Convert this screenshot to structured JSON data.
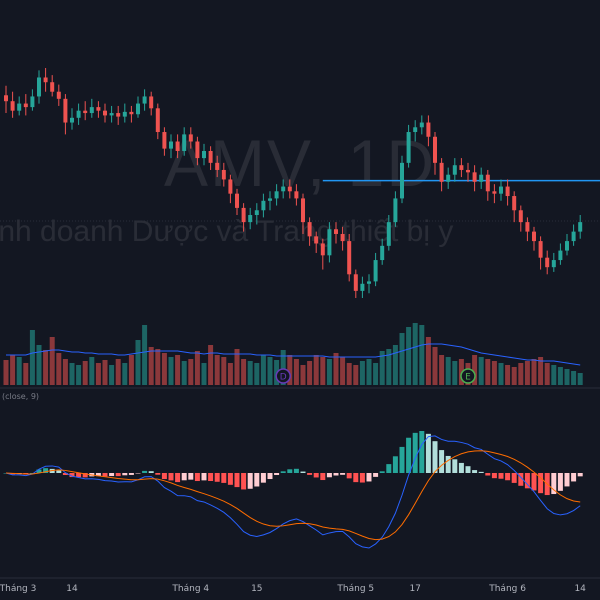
{
  "watermark": {
    "title": "AMV, 1D",
    "subtitle": "t kinh doanh Dược và Trang thiết bị y"
  },
  "macd_label": "(close, 9)",
  "colors": {
    "background": "#131722",
    "up": "#26a69a",
    "down": "#ef5350",
    "macd_hist_up_strong": "#26a69a",
    "macd_hist_up_weak": "#b2dfdb",
    "macd_hist_down_strong": "#ff5252",
    "macd_hist_down_weak": "#ffcdd2",
    "macd_line": "#2962ff",
    "signal_line": "#ff6d00",
    "volume_ma": "#2962ff",
    "horizontal_line": "#2196f3"
  },
  "events": [
    {
      "label": "D",
      "color": "#673ab7",
      "index": 42
    },
    {
      "label": "E",
      "color": "#4caf50",
      "index": 70
    }
  ],
  "chart_data": {
    "type": "candlestick",
    "x_ticks": [
      {
        "label": "Tháng 3",
        "index": 0
      },
      {
        "label": "14",
        "index": 10
      },
      {
        "label": "Tháng 4",
        "index": 28
      },
      {
        "label": "15",
        "index": 38
      },
      {
        "label": "Tháng 5",
        "index": 53
      },
      {
        "label": "17",
        "index": 62
      },
      {
        "label": "Tháng 6",
        "index": 76
      },
      {
        "label": "14",
        "index": 87
      }
    ],
    "horizontal_level": 6.15,
    "candles": [
      [
        6.87,
        6.82,
        6.95,
        6.72
      ],
      [
        6.82,
        6.74,
        6.9,
        6.68
      ],
      [
        6.74,
        6.8,
        6.86,
        6.7
      ],
      [
        6.8,
        6.77,
        6.88,
        6.7
      ],
      [
        6.77,
        6.86,
        6.92,
        6.74
      ],
      [
        6.86,
        7.02,
        7.08,
        6.8
      ],
      [
        7.02,
        6.98,
        7.1,
        6.9
      ],
      [
        6.98,
        6.9,
        7.04,
        6.86
      ],
      [
        6.9,
        6.84,
        6.96,
        6.78
      ],
      [
        6.84,
        6.64,
        6.88,
        6.54
      ],
      [
        6.64,
        6.68,
        6.76,
        6.58
      ],
      [
        6.68,
        6.74,
        6.8,
        6.62
      ],
      [
        6.74,
        6.72,
        6.82,
        6.66
      ],
      [
        6.72,
        6.77,
        6.84,
        6.68
      ],
      [
        6.77,
        6.74,
        6.82,
        6.68
      ],
      [
        6.74,
        6.7,
        6.8,
        6.64
      ],
      [
        6.7,
        6.72,
        6.78,
        6.64
      ],
      [
        6.72,
        6.69,
        6.78,
        6.62
      ],
      [
        6.69,
        6.73,
        6.8,
        6.64
      ],
      [
        6.73,
        6.71,
        6.78,
        6.64
      ],
      [
        6.71,
        6.8,
        6.86,
        6.68
      ],
      [
        6.8,
        6.86,
        6.92,
        6.74
      ],
      [
        6.86,
        6.76,
        6.9,
        6.7
      ],
      [
        6.76,
        6.56,
        6.8,
        6.5
      ],
      [
        6.56,
        6.42,
        6.6,
        6.36
      ],
      [
        6.42,
        6.48,
        6.54,
        6.34
      ],
      [
        6.48,
        6.4,
        6.54,
        6.34
      ],
      [
        6.4,
        6.54,
        6.6,
        6.36
      ],
      [
        6.54,
        6.48,
        6.6,
        6.42
      ],
      [
        6.48,
        6.34,
        6.52,
        6.28
      ],
      [
        6.34,
        6.4,
        6.46,
        6.28
      ],
      [
        6.4,
        6.3,
        6.44,
        6.24
      ],
      [
        6.3,
        6.24,
        6.36,
        6.18
      ],
      [
        6.24,
        6.16,
        6.3,
        6.1
      ],
      [
        6.16,
        6.04,
        6.2,
        5.96
      ],
      [
        6.04,
        5.92,
        6.08,
        5.86
      ],
      [
        5.92,
        5.8,
        5.96,
        5.72
      ],
      [
        5.8,
        5.86,
        5.92,
        5.74
      ],
      [
        5.86,
        5.9,
        5.96,
        5.78
      ],
      [
        5.9,
        5.98,
        6.04,
        5.84
      ],
      [
        5.98,
        6.0,
        6.06,
        5.9
      ],
      [
        6.0,
        6.06,
        6.12,
        5.94
      ],
      [
        6.06,
        6.1,
        6.16,
        6.0
      ],
      [
        6.1,
        6.06,
        6.16,
        6.0
      ],
      [
        6.06,
        6.0,
        6.12,
        5.94
      ],
      [
        6.0,
        5.8,
        6.04,
        5.7
      ],
      [
        5.8,
        5.68,
        5.84,
        5.6
      ],
      [
        5.68,
        5.62,
        5.72,
        5.54
      ],
      [
        5.62,
        5.52,
        5.66,
        5.4
      ],
      [
        5.52,
        5.74,
        5.8,
        5.46
      ],
      [
        5.74,
        5.7,
        5.8,
        5.62
      ],
      [
        5.7,
        5.64,
        5.76,
        5.56
      ],
      [
        5.64,
        5.36,
        5.7,
        5.3
      ],
      [
        5.36,
        5.22,
        5.4,
        5.16
      ],
      [
        5.22,
        5.28,
        5.34,
        5.16
      ],
      [
        5.28,
        5.3,
        5.36,
        5.2
      ],
      [
        5.3,
        5.48,
        5.54,
        5.26
      ],
      [
        5.48,
        5.6,
        5.66,
        5.44
      ],
      [
        5.6,
        5.8,
        5.86,
        5.56
      ],
      [
        5.8,
        6.0,
        6.06,
        5.76
      ],
      [
        6.0,
        6.3,
        6.36,
        5.96
      ],
      [
        6.3,
        6.56,
        6.62,
        6.26
      ],
      [
        6.56,
        6.6,
        6.66,
        6.48
      ],
      [
        6.6,
        6.64,
        6.7,
        6.54
      ],
      [
        6.64,
        6.52,
        6.7,
        6.44
      ],
      [
        6.52,
        6.3,
        6.56,
        6.2
      ],
      [
        6.3,
        6.14,
        6.34,
        6.06
      ],
      [
        6.14,
        6.2,
        6.26,
        6.08
      ],
      [
        6.2,
        6.28,
        6.34,
        6.14
      ],
      [
        6.28,
        6.24,
        6.34,
        6.18
      ],
      [
        6.24,
        6.22,
        6.3,
        6.14
      ],
      [
        6.22,
        6.14,
        6.28,
        6.06
      ],
      [
        6.14,
        6.2,
        6.26,
        6.08
      ],
      [
        6.2,
        6.06,
        6.24,
        5.98
      ],
      [
        6.06,
        6.04,
        6.12,
        5.96
      ],
      [
        6.04,
        6.1,
        6.16,
        5.98
      ],
      [
        6.1,
        6.02,
        6.16,
        5.94
      ],
      [
        6.02,
        5.9,
        6.06,
        5.8
      ],
      [
        5.9,
        5.8,
        5.94,
        5.72
      ],
      [
        5.8,
        5.72,
        5.84,
        5.64
      ],
      [
        5.72,
        5.64,
        5.76,
        5.56
      ],
      [
        5.64,
        5.5,
        5.68,
        5.4
      ],
      [
        5.5,
        5.42,
        5.56,
        5.36
      ],
      [
        5.42,
        5.48,
        5.54,
        5.38
      ],
      [
        5.48,
        5.56,
        5.62,
        5.44
      ],
      [
        5.56,
        5.64,
        5.7,
        5.52
      ],
      [
        5.64,
        5.72,
        5.78,
        5.6
      ],
      [
        5.72,
        5.8,
        5.86,
        5.66
      ]
    ],
    "volume": [
      25,
      30,
      28,
      22,
      55,
      40,
      35,
      48,
      32,
      26,
      22,
      20,
      24,
      28,
      22,
      25,
      20,
      26,
      22,
      30,
      45,
      60,
      38,
      36,
      32,
      28,
      30,
      24,
      26,
      34,
      22,
      40,
      30,
      28,
      22,
      36,
      26,
      24,
      22,
      30,
      28,
      25,
      35,
      30,
      26,
      20,
      24,
      30,
      28,
      26,
      32,
      28,
      22,
      20,
      24,
      26,
      22,
      34,
      36,
      40,
      52,
      58,
      62,
      60,
      48,
      38,
      30,
      28,
      24,
      26,
      22,
      30,
      28,
      26,
      24,
      22,
      20,
      18,
      22,
      24,
      26,
      28,
      22,
      20,
      18,
      16,
      14,
      12
    ],
    "volume_ma": [
      30,
      30,
      30,
      30,
      32,
      33,
      34,
      35,
      35,
      34,
      33,
      33,
      32,
      32,
      31,
      31,
      31,
      30,
      30,
      31,
      32,
      33,
      34,
      34,
      34,
      34,
      34,
      33,
      32,
      32,
      31,
      32,
      32,
      31,
      31,
      31,
      31,
      31,
      30,
      30,
      30,
      29,
      29,
      29,
      29,
      29,
      29,
      29,
      29,
      28,
      28,
      28,
      28,
      28,
      28,
      28,
      28,
      29,
      30,
      32,
      34,
      36,
      38,
      40,
      41,
      41,
      41,
      40,
      39,
      38,
      36,
      34,
      32,
      31,
      30,
      29,
      28,
      27,
      26,
      25,
      25,
      24,
      24,
      24,
      23,
      22,
      21,
      20
    ]
  }
}
